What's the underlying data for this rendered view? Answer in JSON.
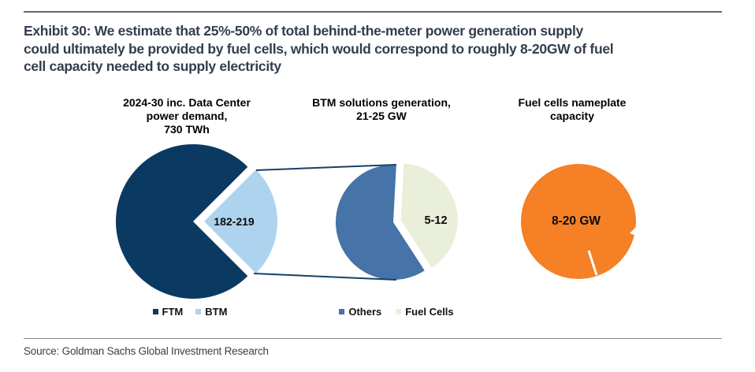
{
  "exhibit": {
    "title_lines": [
      "Exhibit 30: We estimate that 25%-50% of total behind-the-meter power generation supply",
      "could ultimately be provided by fuel cells, which would correspond to roughly 8-20GW of fuel",
      "cell capacity needed to supply electricity"
    ]
  },
  "source": "Source: Goldman Sachs Global Investment Research",
  "colors": {
    "dark_navy": "#0a3a62",
    "light_blue": "#aed3ee",
    "medium_blue": "#4673a8",
    "light_green": "#e9efd9",
    "orange": "#f58025",
    "connector": "#16406b",
    "title_text": "#323e4f",
    "rule_top": "#66686b",
    "rule_bottom": "#8a8c8f"
  },
  "chart_data": [
    {
      "type": "pie",
      "title": "2024-30 inc. Data Center power demand, 730 TWh",
      "title_lines": [
        "2024-30 inc. Data Center",
        "power demand,",
        "730 TWh"
      ],
      "total": "730 TWh",
      "legend_position": "bottom",
      "slices": [
        {
          "name": "FTM",
          "color": "#0a3a62",
          "fraction": 0.75
        },
        {
          "name": "BTM",
          "color": "#aed3ee",
          "fraction": 0.25,
          "label": "182-219",
          "exploded": true
        }
      ]
    },
    {
      "type": "pie",
      "title": "BTM solutions generation, 21-25 GW",
      "title_lines": [
        "BTM solutions generation,",
        "21-25 GW"
      ],
      "legend_position": "bottom",
      "slices": [
        {
          "name": "Others",
          "color": "#4673a8",
          "fraction": 0.6
        },
        {
          "name": "Fuel Cells",
          "color": "#e9efd9",
          "fraction": 0.4,
          "label": "5-12",
          "exploded": true
        }
      ]
    },
    {
      "type": "pie",
      "title": "Fuel cells nameplate capacity",
      "title_lines": [
        "Fuel cells nameplate",
        "capacity"
      ],
      "legend_position": "none",
      "slices": [
        {
          "name": "Fuel cells",
          "color": "#f58025",
          "fraction": 1.0,
          "label": "8-20 GW"
        }
      ]
    }
  ]
}
